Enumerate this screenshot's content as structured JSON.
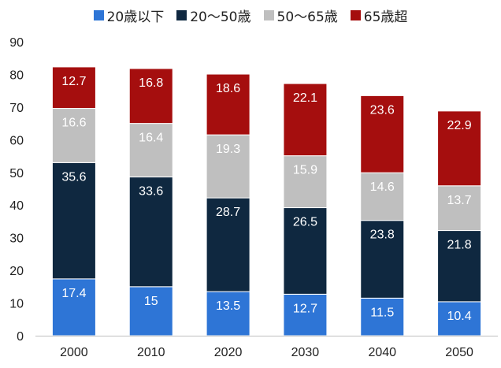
{
  "chart_data": {
    "type": "bar",
    "stacked": true,
    "categories": [
      "2000",
      "2010",
      "2020",
      "2030",
      "2040",
      "2050"
    ],
    "series": [
      {
        "name": "20歳以下",
        "color": "#2e75d6",
        "values": [
          17.4,
          15,
          13.5,
          12.7,
          11.5,
          10.4
        ],
        "labels": [
          "17.4",
          "15",
          "13.5",
          "12.7",
          "11.5",
          "10.4"
        ]
      },
      {
        "name": "20～50歳",
        "color": "#0f2840",
        "values": [
          35.6,
          33.6,
          28.7,
          26.5,
          23.8,
          21.8
        ],
        "labels": [
          "35.6",
          "33.6",
          "28.7",
          "26.5",
          "23.8",
          "21.8"
        ]
      },
      {
        "name": "50～65歳",
        "color": "#bfbfbf",
        "values": [
          16.6,
          16.4,
          19.3,
          15.9,
          14.6,
          13.7
        ],
        "labels": [
          "16.6",
          "16.4",
          "19.3",
          "15.9",
          "14.6",
          "13.7"
        ]
      },
      {
        "name": "65歳超",
        "color": "#a50e0e",
        "values": [
          12.7,
          16.8,
          18.6,
          22.1,
          23.6,
          22.9
        ],
        "labels": [
          "12.7",
          "16.8",
          "18.6",
          "22.1",
          "23.6",
          "22.9"
        ]
      }
    ],
    "ylim": [
      0,
      90
    ],
    "yticks": [
      "0",
      "10",
      "20",
      "30",
      "40",
      "50",
      "60",
      "70",
      "80",
      "90"
    ],
    "grid": false,
    "legend_position": "top",
    "title": "",
    "xlabel": "",
    "ylabel": ""
  }
}
